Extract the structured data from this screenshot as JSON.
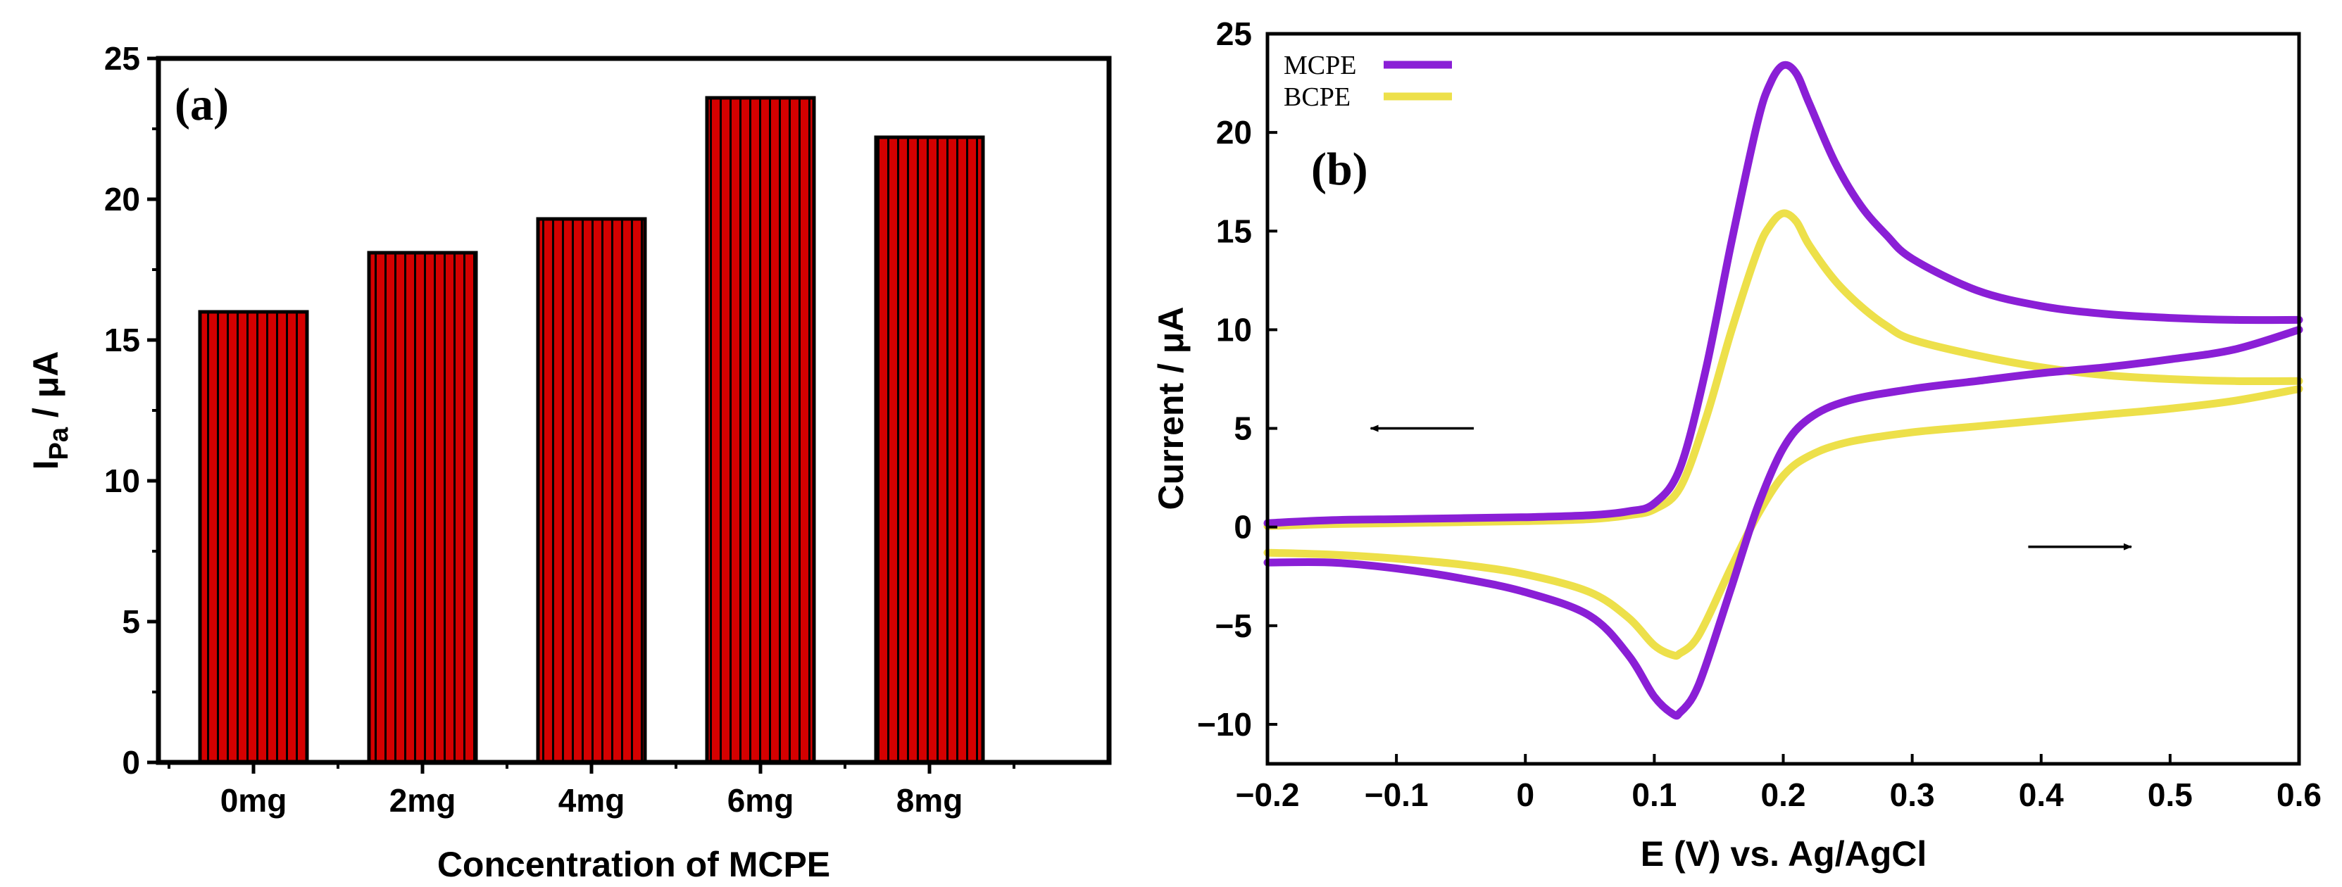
{
  "chart_data": [
    {
      "type": "bar",
      "panel_label": "(a)",
      "title": "",
      "xlabel": "Concentration of MCPE",
      "ylabel_main": "I",
      "ylabel_sub": "Pa",
      "ylabel_rest": " / μA",
      "categories": [
        "0mg",
        "2mg",
        "4mg",
        "6mg",
        "8mg"
      ],
      "values": [
        16.0,
        18.1,
        19.3,
        23.6,
        22.2
      ],
      "ylim": [
        0,
        25
      ],
      "yticks": [
        0,
        5,
        10,
        15,
        20,
        25
      ],
      "ytick_labels": [
        "0",
        "5",
        "10",
        "15",
        "20",
        "25"
      ],
      "bar_color": "#d40000",
      "stripe_color": "#000000",
      "grid": false
    },
    {
      "type": "line",
      "panel_label": "(b)",
      "title": "",
      "xlabel": "E (V) vs. Ag/AgCl",
      "ylabel": "Current / μA",
      "xlim": [
        -0.2,
        0.6
      ],
      "ylim": [
        -12,
        25
      ],
      "xticks": [
        -0.2,
        -0.1,
        0,
        0.1,
        0.2,
        0.3,
        0.4,
        0.5,
        0.6
      ],
      "xtick_labels": [
        "−0.2",
        "−0.1",
        "0",
        "0.1",
        "0.2",
        "0.3",
        "0.4",
        "0.5",
        "0.6"
      ],
      "yticks": [
        -10,
        -5,
        0,
        5,
        10,
        15,
        20,
        25
      ],
      "ytick_labels": [
        "−10",
        "−5",
        "0",
        "5",
        "10",
        "15",
        "20",
        "25"
      ],
      "legend_position": "top-left",
      "grid": false,
      "annotations": [
        {
          "type": "arrow",
          "direction": "left",
          "x0": -0.04,
          "x1": -0.12,
          "y": 5
        },
        {
          "type": "arrow",
          "direction": "right",
          "x0": 0.39,
          "x1": 0.47,
          "y": -1
        }
      ],
      "series": [
        {
          "name": "MCPE",
          "color": "#8a1fd6",
          "forward": {
            "x": [
              -0.2,
              -0.15,
              -0.1,
              -0.05,
              0.0,
              0.05,
              0.08,
              0.1,
              0.12,
              0.14,
              0.16,
              0.18,
              0.19,
              0.2,
              0.21,
              0.22,
              0.24,
              0.26,
              0.28,
              0.3,
              0.35,
              0.4,
              0.45,
              0.5,
              0.55,
              0.6
            ],
            "y": [
              0.2,
              0.35,
              0.4,
              0.45,
              0.5,
              0.6,
              0.8,
              1.2,
              3.0,
              8.0,
              14.5,
              20.5,
              22.5,
              23.4,
              23.0,
              21.5,
              18.5,
              16.3,
              14.8,
              13.6,
              12.0,
              11.2,
              10.8,
              10.6,
              10.5,
              10.5
            ]
          },
          "reverse": {
            "x": [
              0.6,
              0.55,
              0.5,
              0.45,
              0.4,
              0.35,
              0.3,
              0.25,
              0.22,
              0.2,
              0.18,
              0.16,
              0.14,
              0.13,
              0.12,
              0.115,
              0.1,
              0.08,
              0.05,
              0.0,
              -0.05,
              -0.1,
              -0.15,
              -0.2
            ],
            "y": [
              10.0,
              9.0,
              8.5,
              8.1,
              7.8,
              7.4,
              7.0,
              6.4,
              5.5,
              4.0,
              1.0,
              -3.0,
              -7.0,
              -8.6,
              -9.4,
              -9.5,
              -8.6,
              -6.5,
              -4.5,
              -3.3,
              -2.6,
              -2.1,
              -1.8,
              -1.8
            ]
          }
        },
        {
          "name": "BCPE",
          "color": "#ede04a",
          "forward": {
            "x": [
              -0.2,
              -0.15,
              -0.1,
              -0.05,
              0.0,
              0.05,
              0.08,
              0.1,
              0.12,
              0.14,
              0.16,
              0.18,
              0.19,
              0.2,
              0.21,
              0.22,
              0.24,
              0.26,
              0.28,
              0.3,
              0.35,
              0.4,
              0.45,
              0.5,
              0.55,
              0.6
            ],
            "y": [
              0.05,
              0.15,
              0.2,
              0.25,
              0.3,
              0.4,
              0.6,
              0.9,
              2.0,
              5.5,
              10.0,
              14.0,
              15.3,
              15.9,
              15.5,
              14.3,
              12.5,
              11.2,
              10.2,
              9.5,
              8.7,
              8.1,
              7.7,
              7.5,
              7.4,
              7.4
            ]
          },
          "reverse": {
            "x": [
              0.6,
              0.55,
              0.5,
              0.45,
              0.4,
              0.35,
              0.3,
              0.25,
              0.22,
              0.2,
              0.18,
              0.16,
              0.14,
              0.13,
              0.12,
              0.115,
              0.1,
              0.08,
              0.05,
              0.0,
              -0.05,
              -0.1,
              -0.15,
              -0.2
            ],
            "y": [
              7.0,
              6.4,
              6.0,
              5.7,
              5.4,
              5.1,
              4.8,
              4.3,
              3.6,
              2.6,
              0.6,
              -2.0,
              -4.8,
              -5.9,
              -6.4,
              -6.5,
              -6.0,
              -4.6,
              -3.3,
              -2.4,
              -1.9,
              -1.6,
              -1.4,
              -1.3
            ]
          }
        }
      ]
    }
  ]
}
